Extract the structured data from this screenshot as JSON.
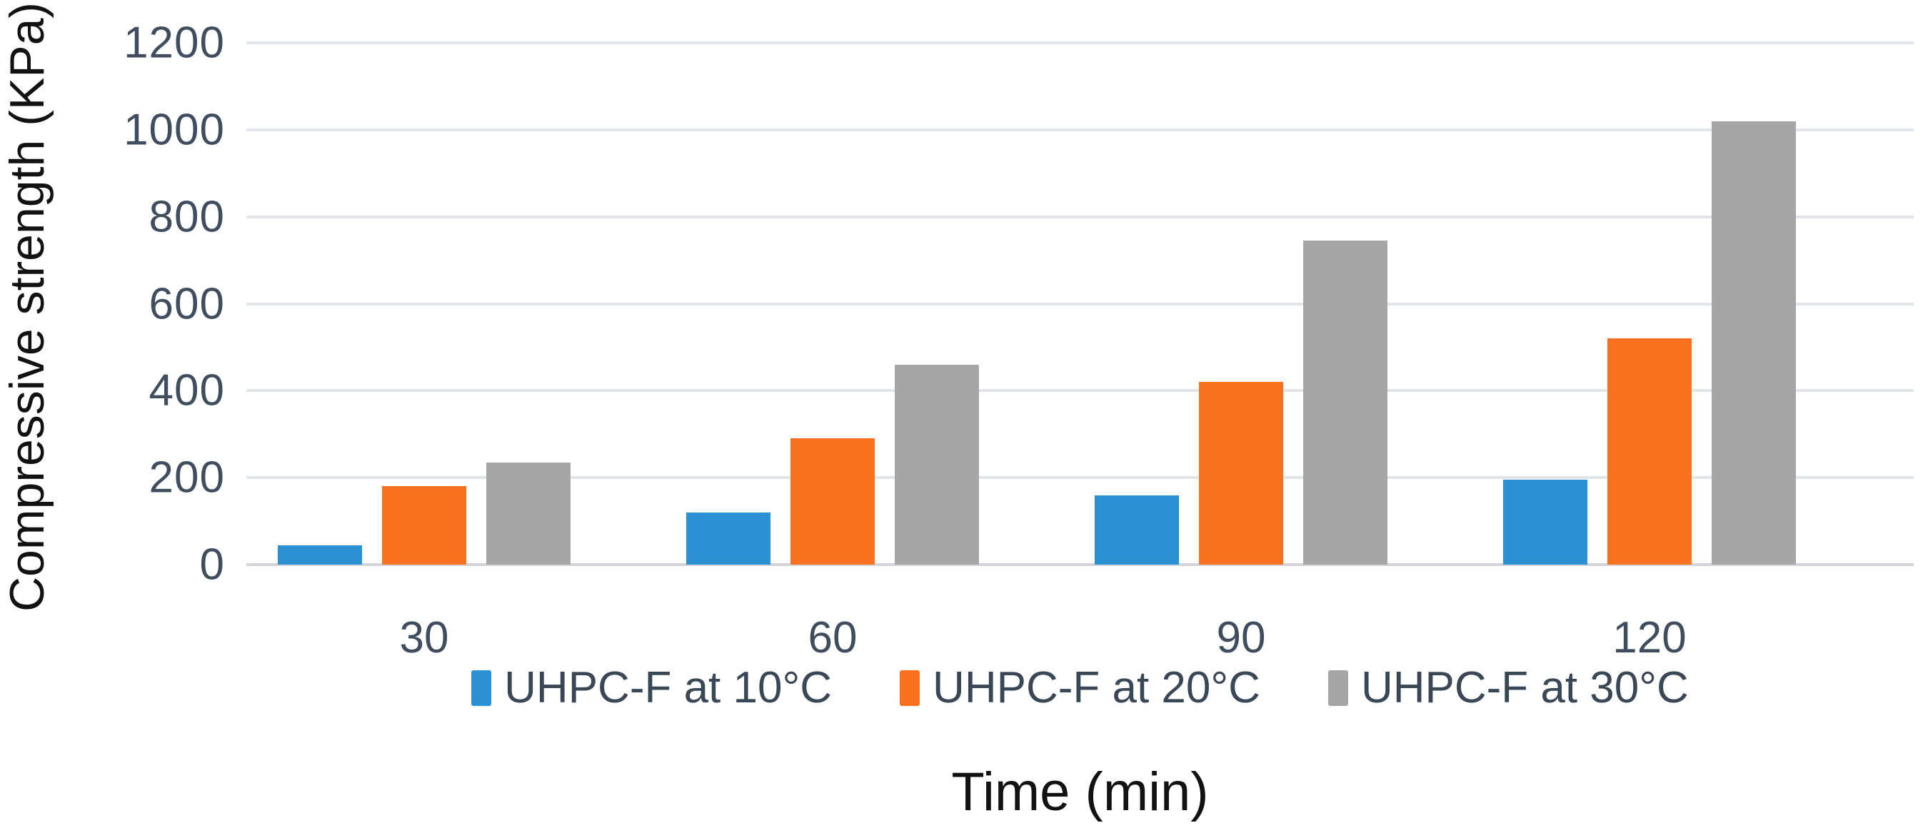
{
  "chart_data": {
    "type": "bar",
    "title": "",
    "xlabel": "Time (min)",
    "ylabel": "Compressive strength (KPa)",
    "categories": [
      "30",
      "60",
      "90",
      "120"
    ],
    "series": [
      {
        "name": "UHPC-F at 10°C",
        "color": "#2b91d3",
        "values": [
          45,
          120,
          160,
          195
        ]
      },
      {
        "name": "UHPC-F at 20°C",
        "color": "#fb7120",
        "values": [
          180,
          290,
          420,
          520
        ]
      },
      {
        "name": "UHPC-F at 30°C",
        "color": "#a6a6a6",
        "values": [
          235,
          460,
          745,
          1020
        ]
      }
    ],
    "ylim": [
      0,
      1200
    ],
    "ytick_step": 200,
    "yticks": [
      0,
      200,
      400,
      600,
      800,
      1000,
      1200
    ],
    "grid": "horizontal",
    "legend_position": "bottom"
  },
  "colors": {
    "gridline": "#e2e5ea",
    "baseline": "#d2d6dc",
    "tick_text": "#3f4d5f",
    "axis_title_text": "#121212",
    "background": "#ffffff"
  }
}
